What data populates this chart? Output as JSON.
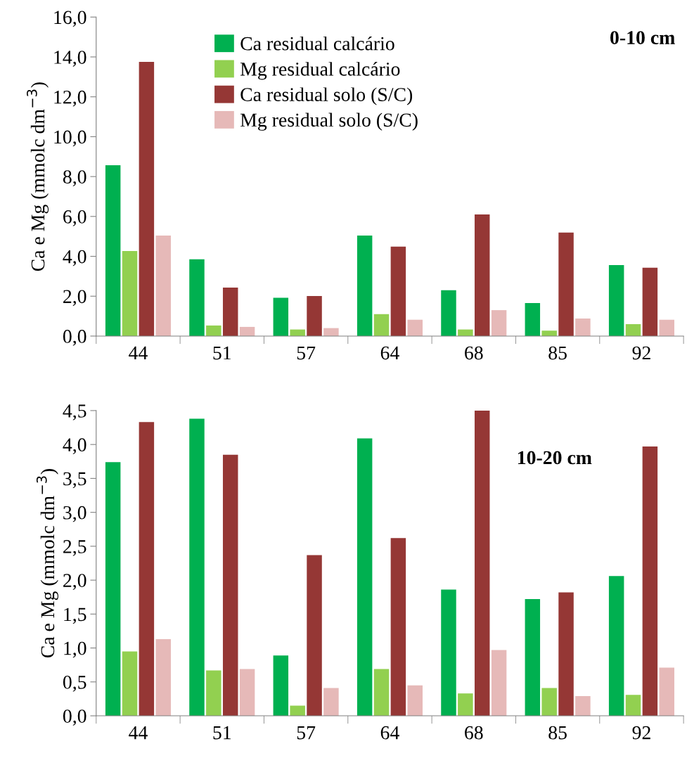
{
  "chart_data": [
    {
      "type": "bar",
      "ylabel": "Ca e Mg (mmolc dm$^{−3}$)",
      "annotations": [
        "0-10 cm"
      ],
      "categories": [
        "44",
        "51",
        "57",
        "64",
        "68",
        "85",
        "92"
      ],
      "series": [
        {
          "name": "Ca residual calcário",
          "color": "#00b050",
          "values": [
            8.57,
            3.85,
            1.92,
            5.04,
            2.3,
            1.66,
            3.56
          ]
        },
        {
          "name": "Mg residual calcário",
          "color": "#92d050",
          "values": [
            4.27,
            0.53,
            0.33,
            1.1,
            0.33,
            0.27,
            0.6
          ]
        },
        {
          "name": "Ca residual solo (S/C)",
          "color": "#953735",
          "values": [
            13.75,
            2.43,
            2.01,
            4.49,
            6.1,
            5.19,
            3.43
          ]
        },
        {
          "name": "Mg residual solo (S/C)",
          "color": "#e6b9b8",
          "values": [
            5.04,
            0.46,
            0.4,
            0.82,
            1.3,
            0.88,
            0.82
          ]
        }
      ],
      "ylim": [
        0,
        16
      ],
      "yticks": [
        {
          "value": 0,
          "label": "0,0"
        },
        {
          "value": 2,
          "label": "2,0"
        },
        {
          "value": 4,
          "label": "4,0"
        },
        {
          "value": 6,
          "label": "6,0"
        },
        {
          "value": 8,
          "label": "8,0"
        },
        {
          "value": 10,
          "label": "10,0"
        },
        {
          "value": 12,
          "label": "12,0"
        },
        {
          "value": 14,
          "label": "14,0"
        },
        {
          "value": 16,
          "label": "16,0"
        }
      ],
      "grid": false,
      "legend": "top"
    },
    {
      "type": "bar",
      "ylabel": "Ca e Mg (mmolc dm$^{−3}$)",
      "annotations": [
        "10-20 cm"
      ],
      "categories": [
        "44",
        "51",
        "57",
        "64",
        "68",
        "85",
        "92"
      ],
      "series": [
        {
          "color": "#00b050",
          "values": [
            3.74,
            4.38,
            0.89,
            4.09,
            1.86,
            1.72,
            2.06
          ]
        },
        {
          "color": "#92d050",
          "values": [
            0.95,
            0.67,
            0.15,
            0.69,
            0.33,
            0.41,
            0.31
          ]
        },
        {
          "color": "#953735",
          "values": [
            4.33,
            3.85,
            2.37,
            2.62,
            4.5,
            1.82,
            3.97
          ]
        },
        {
          "color": "#e6b9b8",
          "values": [
            1.13,
            0.69,
            0.41,
            0.45,
            0.97,
            0.29,
            0.71
          ]
        }
      ],
      "ylim": [
        0,
        4.5
      ],
      "yticks": [
        {
          "value": 0,
          "label": "0,0"
        },
        {
          "value": 0.5,
          "label": "0,5"
        },
        {
          "value": 1,
          "label": "1,0"
        },
        {
          "value": 1.5,
          "label": "1,5"
        },
        {
          "value": 2,
          "label": "2,0"
        },
        {
          "value": 2.5,
          "label": "2,5"
        },
        {
          "value": 3,
          "label": "3,0"
        },
        {
          "value": 3.5,
          "label": "3,5"
        },
        {
          "value": 4,
          "label": "4,0"
        },
        {
          "value": 4.5,
          "label": "4,5"
        }
      ],
      "grid": false,
      "legend": false
    }
  ]
}
